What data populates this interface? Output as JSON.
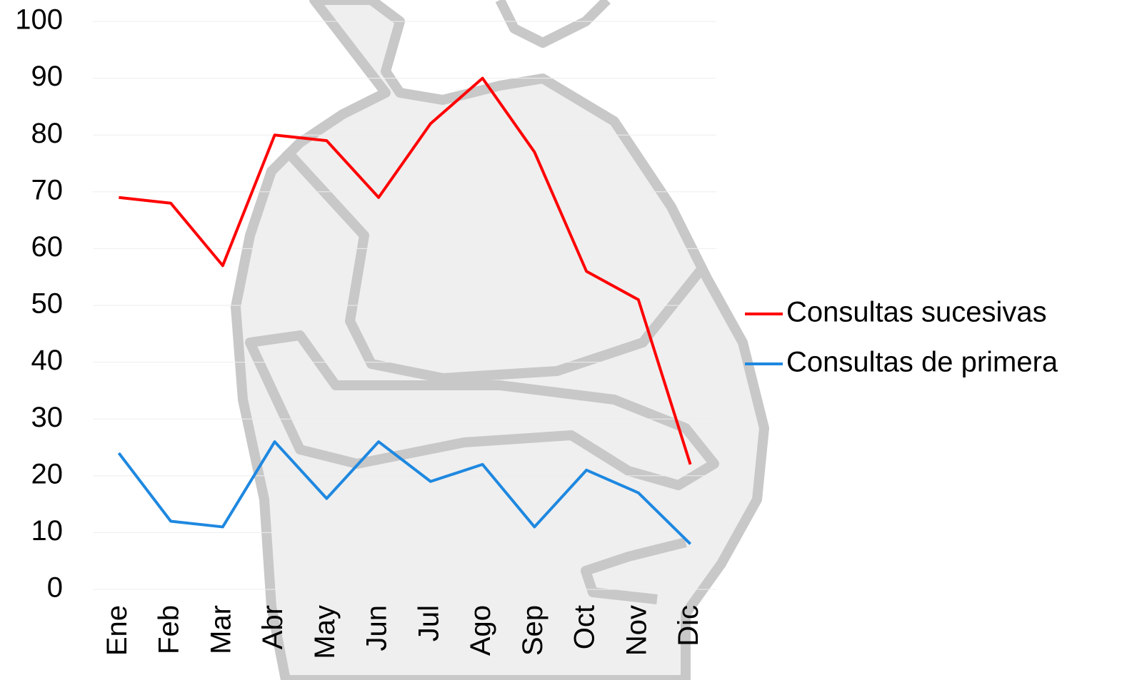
{
  "chart_data": {
    "type": "line",
    "categories": [
      "Ene",
      "Feb",
      "Mar",
      "Abr",
      "May",
      "Jun",
      "Jul",
      "Ago",
      "Sep",
      "Oct",
      "Nov",
      "Dic"
    ],
    "series": [
      {
        "name": "Consultas sucesivas",
        "color": "#ff0000",
        "values": [
          69,
          68,
          57,
          80,
          79,
          69,
          82,
          90,
          77,
          56,
          51,
          22
        ]
      },
      {
        "name": "Consultas de primera",
        "color": "#1e88e0",
        "values": [
          24,
          12,
          11,
          26,
          16,
          26,
          19,
          22,
          11,
          21,
          17,
          8
        ]
      }
    ],
    "ylim": [
      0,
      100
    ],
    "yticks": [
      0,
      10,
      20,
      30,
      40,
      50,
      60,
      70,
      80,
      90,
      100
    ],
    "grid": true,
    "legend": "right"
  }
}
